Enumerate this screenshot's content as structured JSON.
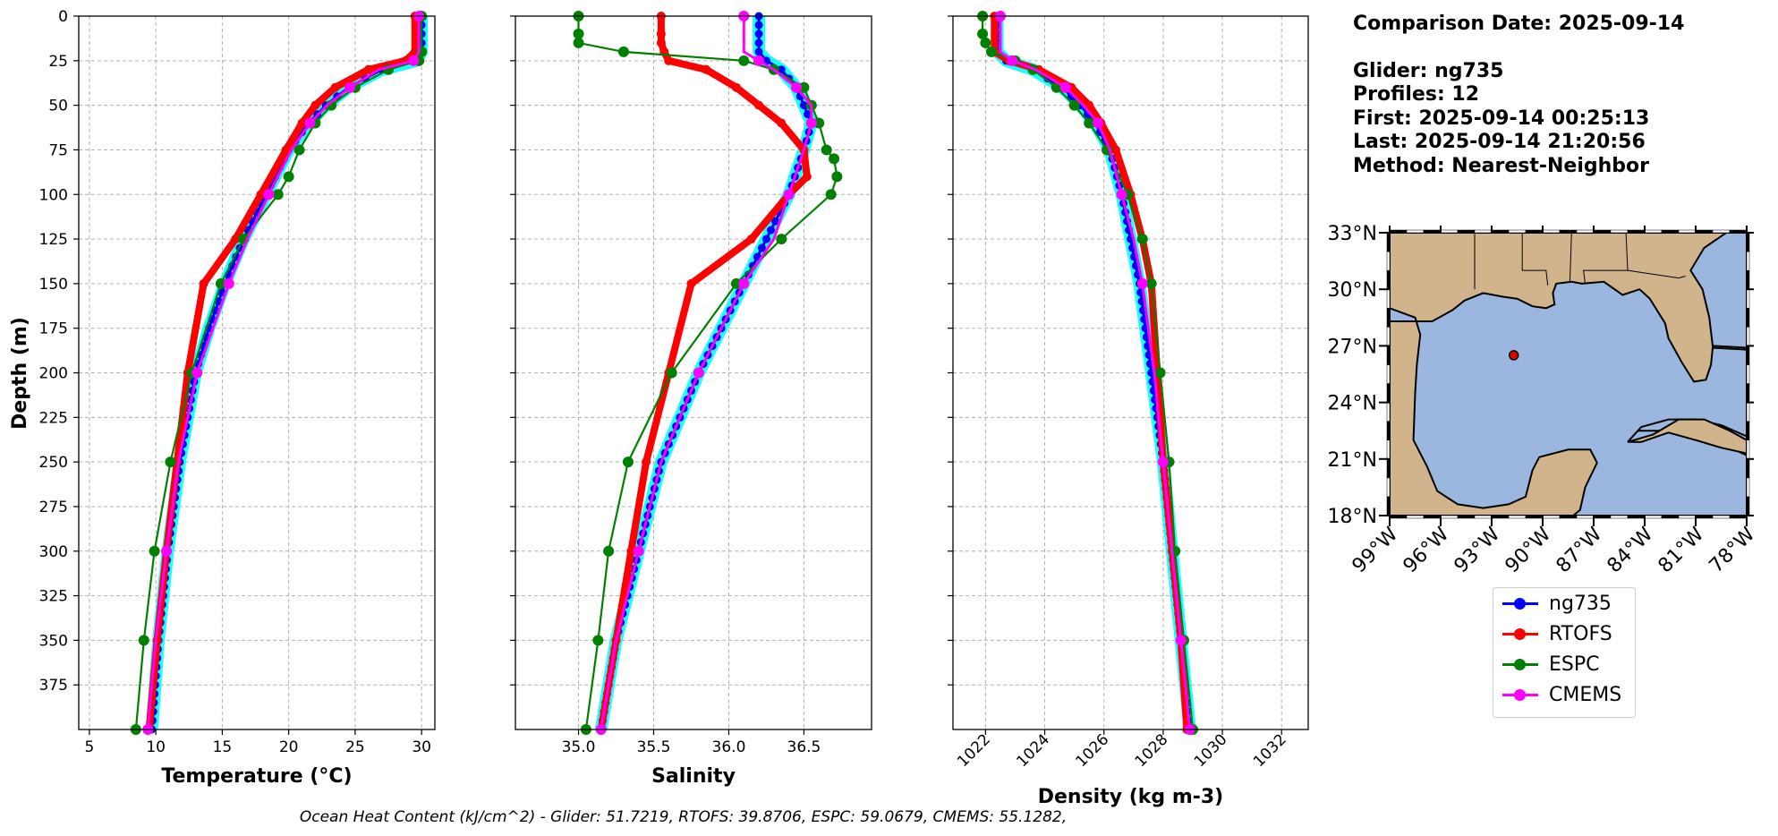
{
  "info": {
    "comparison_date": "Comparison Date: 2025-09-14",
    "glider": "Glider: ng735",
    "profiles": "Profiles: 12",
    "first": "First: 2025-09-14 00:25:13",
    "last": "Last: 2025-09-14 21:20:56",
    "method": "Method: Nearest-Neighbor"
  },
  "footer": "Ocean Heat Content (kJ/cm^2) - Glider: 51.7219,  RTOFS: 39.8706,  ESPC: 59.0679,  CMEMS: 55.1282,",
  "colors": {
    "glider": "#0000ff",
    "rtofs": "#ff0000",
    "espc": "#008000",
    "cmems": "#ff00ff",
    "glider_spread": "#00ffff",
    "land": "#d2b48c",
    "ocean": "#9bb7e0"
  },
  "legend": [
    {
      "name": "ng735",
      "color": "#0000ff"
    },
    {
      "name": "RTOFS",
      "color": "#ff0000"
    },
    {
      "name": "ESPC",
      "color": "#008000"
    },
    {
      "name": "CMEMS",
      "color": "#ff00ff"
    }
  ],
  "chart_data": [
    {
      "type": "line",
      "xlabel": "Temperature (°C)",
      "ylabel": "Depth (m)",
      "xlim": [
        4.2,
        31.0
      ],
      "ylim": [
        400,
        0
      ],
      "xticks": [
        "5",
        "10",
        "15",
        "20",
        "25",
        "30"
      ],
      "yticks": [
        "0",
        "25",
        "50",
        "75",
        "100",
        "125",
        "150",
        "175",
        "200",
        "225",
        "250",
        "275",
        "300",
        "325",
        "350",
        "375"
      ],
      "grid": true,
      "series": [
        {
          "name": "ng735",
          "depth": [
            0,
            20,
            25,
            30,
            40,
            50,
            60,
            75,
            100,
            125,
            150,
            175,
            200,
            250,
            300,
            350,
            400
          ],
          "values": [
            30.0,
            30.0,
            29.6,
            27.0,
            24.5,
            22.8,
            21.5,
            20.0,
            18.3,
            16.6,
            15.2,
            14.0,
            13.0,
            11.8,
            10.9,
            10.2,
            9.7
          ]
        },
        {
          "name": "RTOFS",
          "depth": [
            0,
            20,
            25,
            30,
            40,
            50,
            60,
            75,
            100,
            125,
            150,
            200,
            250,
            300,
            350,
            400
          ],
          "values": [
            29.5,
            29.5,
            28.8,
            26.0,
            23.5,
            22.0,
            21.0,
            19.8,
            17.9,
            16.0,
            13.6,
            12.4,
            11.6,
            10.8,
            10.1,
            9.5
          ]
        },
        {
          "name": "ESPC",
          "depth": [
            0,
            20,
            25,
            30,
            40,
            50,
            60,
            75,
            90,
            100,
            125,
            150,
            200,
            250,
            300,
            350,
            400
          ],
          "values": [
            30.0,
            30.0,
            29.8,
            27.5,
            25.0,
            23.2,
            22.0,
            20.8,
            20.0,
            19.2,
            16.6,
            14.9,
            12.7,
            11.1,
            9.9,
            9.1,
            8.5
          ]
        },
        {
          "name": "CMEMS",
          "depth": [
            0,
            20,
            25,
            30,
            40,
            50,
            60,
            75,
            100,
            125,
            150,
            175,
            200,
            250,
            300,
            350,
            400
          ],
          "values": [
            29.8,
            29.8,
            29.4,
            26.8,
            24.6,
            22.9,
            21.6,
            20.2,
            18.5,
            16.9,
            15.5,
            14.3,
            13.1,
            11.7,
            10.8,
            10.0,
            9.4
          ]
        }
      ]
    },
    {
      "type": "line",
      "xlabel": "Salinity",
      "xlim": [
        34.58,
        36.95
      ],
      "ylim": [
        400,
        0
      ],
      "xticks": [
        "35.0",
        "35.5",
        "36.0",
        "36.5"
      ],
      "grid": true,
      "series": [
        {
          "name": "ng735",
          "depth": [
            0,
            20,
            25,
            30,
            40,
            50,
            60,
            75,
            100,
            125,
            150,
            175,
            200,
            250,
            300,
            350,
            400
          ],
          "values": [
            36.2,
            36.2,
            36.25,
            36.35,
            36.45,
            36.5,
            36.55,
            36.5,
            36.4,
            36.25,
            36.1,
            35.95,
            35.8,
            35.55,
            35.4,
            35.25,
            35.15
          ]
        },
        {
          "name": "RTOFS",
          "depth": [
            0,
            10,
            15,
            20,
            25,
            30,
            40,
            50,
            60,
            75,
            90,
            100,
            125,
            150,
            200,
            250,
            300,
            350,
            400
          ],
          "values": [
            35.55,
            35.55,
            35.55,
            35.57,
            35.6,
            35.85,
            36.05,
            36.2,
            36.35,
            36.5,
            36.52,
            36.4,
            36.15,
            35.75,
            35.6,
            35.45,
            35.35,
            35.25,
            35.15
          ]
        },
        {
          "name": "ESPC",
          "depth": [
            0,
            10,
            15,
            20,
            25,
            30,
            40,
            50,
            60,
            75,
            80,
            90,
            100,
            125,
            150,
            200,
            250,
            300,
            350,
            400
          ],
          "values": [
            35.0,
            35.0,
            35.0,
            35.3,
            36.1,
            36.3,
            36.5,
            36.55,
            36.6,
            36.65,
            36.7,
            36.72,
            36.68,
            36.35,
            36.05,
            35.62,
            35.33,
            35.2,
            35.13,
            35.05
          ]
        },
        {
          "name": "CMEMS",
          "depth": [
            0,
            20,
            25,
            30,
            40,
            50,
            60,
            75,
            100,
            125,
            150,
            175,
            200,
            250,
            300,
            350,
            400
          ],
          "values": [
            36.1,
            36.1,
            36.2,
            36.3,
            36.45,
            36.55,
            36.55,
            36.5,
            36.4,
            36.3,
            36.1,
            35.95,
            35.8,
            35.55,
            35.4,
            35.25,
            35.15
          ]
        }
      ]
    },
    {
      "type": "line",
      "xlabel": "Density (kg m-3)",
      "xlim": [
        1020.9,
        1032.9
      ],
      "ylim": [
        400,
        0
      ],
      "xticks": [
        "1022",
        "1024",
        "1026",
        "1028",
        "1030",
        "1032"
      ],
      "grid": true,
      "series": [
        {
          "name": "ng735",
          "depth": [
            0,
            20,
            25,
            30,
            40,
            50,
            60,
            75,
            100,
            125,
            150,
            200,
            250,
            300,
            350,
            400
          ],
          "values": [
            1022.4,
            1022.4,
            1022.7,
            1023.6,
            1024.6,
            1025.2,
            1025.7,
            1026.2,
            1026.6,
            1026.9,
            1027.2,
            1027.6,
            1028.0,
            1028.3,
            1028.6,
            1028.9
          ]
        },
        {
          "name": "RTOFS",
          "depth": [
            0,
            20,
            25,
            30,
            40,
            50,
            60,
            75,
            100,
            125,
            150,
            200,
            250,
            300,
            350,
            400
          ],
          "values": [
            1022.3,
            1022.3,
            1022.8,
            1023.8,
            1024.9,
            1025.5,
            1025.9,
            1026.4,
            1026.9,
            1027.3,
            1027.6,
            1027.8,
            1028.0,
            1028.3,
            1028.6,
            1028.8
          ]
        },
        {
          "name": "ESPC",
          "depth": [
            0,
            10,
            15,
            20,
            25,
            30,
            40,
            50,
            60,
            75,
            100,
            125,
            150,
            200,
            250,
            300,
            350,
            400
          ],
          "values": [
            1021.9,
            1021.9,
            1022.0,
            1022.2,
            1023.0,
            1023.6,
            1024.4,
            1025.0,
            1025.5,
            1026.1,
            1026.8,
            1027.3,
            1027.6,
            1027.9,
            1028.2,
            1028.4,
            1028.7,
            1029.0
          ]
        },
        {
          "name": "CMEMS",
          "depth": [
            0,
            20,
            25,
            30,
            40,
            50,
            60,
            75,
            100,
            125,
            150,
            200,
            250,
            300,
            350,
            400
          ],
          "values": [
            1022.5,
            1022.5,
            1022.9,
            1023.7,
            1024.7,
            1025.3,
            1025.8,
            1026.2,
            1026.6,
            1027.0,
            1027.3,
            1027.7,
            1028.0,
            1028.3,
            1028.6,
            1028.9
          ]
        }
      ]
    }
  ],
  "map": {
    "lon_ticks": [
      "99°W",
      "96°W",
      "93°W",
      "90°W",
      "87°W",
      "84°W",
      "81°W",
      "78°W"
    ],
    "lat_ticks": [
      "33°N",
      "30°N",
      "27°N",
      "24°N",
      "21°N",
      "18°N"
    ],
    "lon_range": [
      -99,
      -78
    ],
    "lat_range": [
      18,
      33
    ],
    "marker": {
      "lon": -91.7,
      "lat": 26.5
    }
  }
}
